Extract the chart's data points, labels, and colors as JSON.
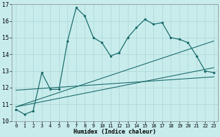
{
  "xlabel": "Humidex (Indice chaleur)",
  "background_color": "#c8ecec",
  "grid_color": "#b0d8d8",
  "line_color": "#1a6b6b",
  "xlim": [
    -0.5,
    23.5
  ],
  "ylim": [
    10,
    17
  ],
  "xticks": [
    0,
    1,
    2,
    3,
    4,
    5,
    6,
    7,
    8,
    9,
    10,
    11,
    12,
    13,
    14,
    15,
    16,
    17,
    18,
    19,
    20,
    21,
    22,
    23
  ],
  "yticks": [
    10,
    11,
    12,
    13,
    14,
    15,
    16,
    17
  ],
  "main_x": [
    0,
    1,
    2,
    3,
    4,
    5,
    6,
    7,
    8,
    9,
    10,
    11,
    12,
    13,
    14,
    15,
    16,
    17,
    18,
    19,
    20,
    21,
    22,
    23
  ],
  "main_y": [
    10.7,
    10.4,
    10.6,
    12.9,
    11.9,
    11.9,
    14.8,
    16.8,
    16.3,
    15.0,
    14.7,
    13.9,
    14.1,
    15.0,
    15.6,
    16.1,
    15.8,
    15.9,
    15.0,
    14.9,
    14.7,
    13.9,
    13.0,
    12.9
  ],
  "line2_x": [
    0,
    23
  ],
  "line2_y": [
    10.85,
    14.8
  ],
  "line3_x": [
    0,
    23
  ],
  "line3_y": [
    10.85,
    13.2
  ],
  "line4_x": [
    0,
    23
  ],
  "line4_y": [
    11.85,
    12.65
  ]
}
